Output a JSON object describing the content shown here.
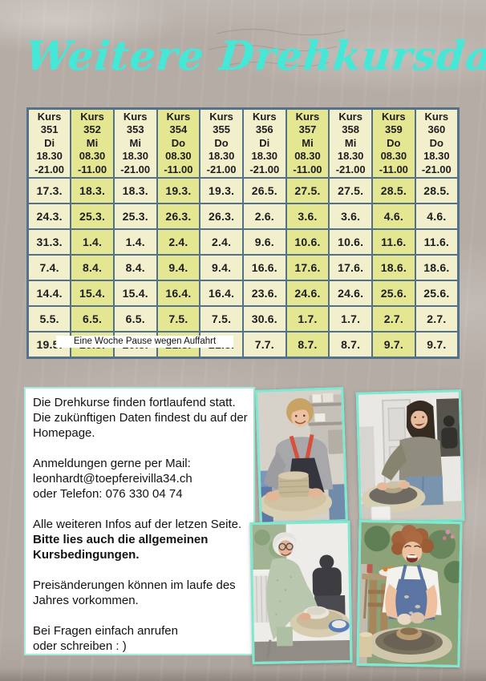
{
  "page": {
    "title": "Weitere Drehkursdaten"
  },
  "colors": {
    "title_text": "#45e7d7",
    "table_border": "#53718a",
    "cell_light": "#f2efcc",
    "cell_dark": "#e4e692",
    "photo_border": "#7ce9d1",
    "info_box_border": "#a5ecdc",
    "page_background": "#b5aca5"
  },
  "table": {
    "columns": [
      {
        "label": "Kurs",
        "number": "351",
        "day": "Di",
        "time_start": "18.30",
        "time_end": "-21.00",
        "shade": "light"
      },
      {
        "label": "Kurs",
        "number": "352",
        "day": "Mi",
        "time_start": "08.30",
        "time_end": "-11.00",
        "shade": "dark"
      },
      {
        "label": "Kurs",
        "number": "353",
        "day": "Mi",
        "time_start": "18.30",
        "time_end": "-21.00",
        "shade": "light"
      },
      {
        "label": "Kurs",
        "number": "354",
        "day": "Do",
        "time_start": "08.30",
        "time_end": "-11.00",
        "shade": "dark"
      },
      {
        "label": "Kurs",
        "number": "355",
        "day": "Do",
        "time_start": "18.30",
        "time_end": "-21.00",
        "shade": "light"
      },
      {
        "label": "Kurs",
        "number": "356",
        "day": "Di",
        "time_start": "18.30",
        "time_end": "-21.00",
        "shade": "light"
      },
      {
        "label": "Kurs",
        "number": "357",
        "day": "Mi",
        "time_start": "08.30",
        "time_end": "-11.00",
        "shade": "dark"
      },
      {
        "label": "Kurs",
        "number": "358",
        "day": "Mi",
        "time_start": "18.30",
        "time_end": "-21.00",
        "shade": "light"
      },
      {
        "label": "Kurs",
        "number": "359",
        "day": "Do",
        "time_start": "08.30",
        "time_end": "-11.00",
        "shade": "dark"
      },
      {
        "label": "Kurs",
        "number": "360",
        "day": "Do",
        "time_start": "18.30",
        "time_end": "-21.00",
        "shade": "light"
      }
    ],
    "rows": [
      [
        "17.3.",
        "18.3.",
        "18.3.",
        "19.3.",
        "19.3.",
        "26.5.",
        "27.5.",
        "27.5.",
        "28.5.",
        "28.5."
      ],
      [
        "24.3.",
        "25.3.",
        "25.3.",
        "26.3.",
        "26.3.",
        "2.6.",
        "3.6.",
        "3.6.",
        "4.6.",
        "4.6."
      ],
      [
        "31.3.",
        "1.4.",
        "1.4.",
        "2.4.",
        "2.4.",
        "9.6.",
        "10.6.",
        "10.6.",
        "11.6.",
        "11.6."
      ],
      [
        "7.4.",
        "8.4.",
        "8.4.",
        "9.4.",
        "9.4.",
        "16.6.",
        "17.6.",
        "17.6.",
        "18.6.",
        "18.6."
      ],
      [
        "14.4.",
        "15.4.",
        "15.4.",
        "16.4.",
        "16.4.",
        "23.6.",
        "24.6.",
        "24.6.",
        "25.6.",
        "25.6."
      ],
      [
        "5.5.",
        "6.5.",
        "6.5.",
        "7.5.",
        "7.5.",
        "30.6.",
        "1.7.",
        "1.7.",
        "2.7.",
        "2.7."
      ],
      [
        "19.5.",
        "20.5.",
        "20.5.",
        "21.5.",
        "21.5.",
        "7.7.",
        "8.7.",
        "8.7.",
        "9.7.",
        "9.7."
      ]
    ],
    "pause_note": "Eine Woche Pause wegen Auffahrt"
  },
  "info": {
    "paragraphs": [
      {
        "lines": [
          {
            "text": "Die Drehkurse finden fortlaufend statt.",
            "bold": false
          },
          {
            "text": "Die zukünftigen Daten findest du auf der",
            "bold": false
          },
          {
            "text": "Homepage.",
            "bold": false
          }
        ]
      },
      {
        "lines": [
          {
            "text": "Anmeldungen gerne per Mail:",
            "bold": false
          },
          {
            "text": "leonhardt@toepfereivilla34.ch",
            "bold": false
          },
          {
            "text": "oder Telefon: 076 330 04 74",
            "bold": false
          }
        ]
      },
      {
        "lines": [
          {
            "text": "Alle weiteren Infos auf der letzen Seite.",
            "bold": false
          },
          {
            "text": "Bitte lies auch die allgemeinen",
            "bold": true
          },
          {
            "text": "Kursbedingungen.",
            "bold": true
          }
        ]
      },
      {
        "lines": [
          {
            "text": "Preisänderungen können im laufe des",
            "bold": false
          },
          {
            "text": "Jahres vorkommen.",
            "bold": false
          }
        ]
      },
      {
        "lines": [
          {
            "text": "Bei Fragen einfach anrufen",
            "bold": false
          },
          {
            "text": "oder schreiben : )",
            "bold": false
          }
        ]
      }
    ]
  }
}
